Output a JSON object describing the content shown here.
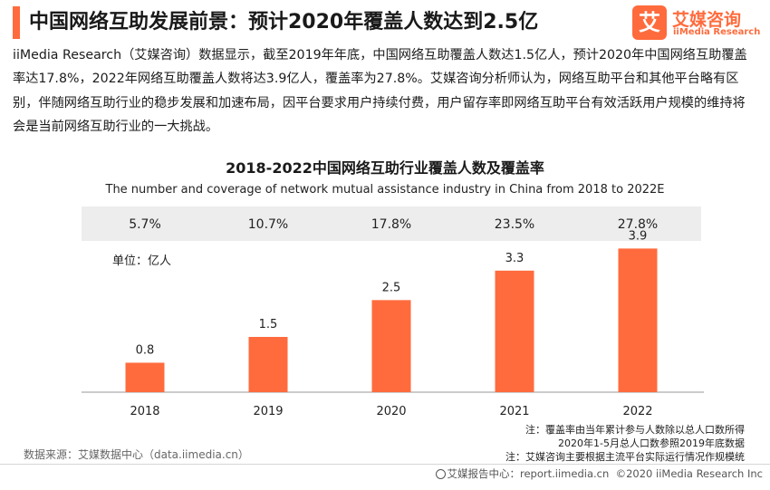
{
  "header": {
    "title": "中国网络互助发展前景：预计2020年覆盖人数达到2.5亿",
    "accent_color": "#ff6b3d"
  },
  "logo": {
    "mark": "艾",
    "name_cn": "艾媒咨询",
    "name_en": "iiMedia Research",
    "color": "#ff6b3d"
  },
  "paragraph": "iiMedia Research（艾媒咨询）数据显示，截至2019年年底，中国网络互助覆盖人数达1.5亿人，预计2020年中国网络互助覆盖率达17.8%，2022年网络互助覆盖人数将达3.9亿人，覆盖率为27.8%。艾媒咨询分析师认为，网络互助平台和其他平台略有区别，伴随网络互助行业的稳步发展和加速布局，因平台要求用户持续付费，用户留存率即网络互助平台有效活跃用户规模的维持将会是当前网络互助行业的一大挑战。",
  "chart_data": {
    "type": "bar",
    "title": "2018-2022中国网络互助行业覆盖人数及覆盖率",
    "subtitle": "The number and coverage of network mutual assistance industry in China from 2018 to 2022E",
    "unit_label": "单位：亿人",
    "categories": [
      "2018",
      "2019",
      "2020",
      "2021",
      "2022"
    ],
    "series": [
      {
        "values": [
          0.8,
          1.5,
          2.5,
          3.3,
          3.9
        ],
        "labels": [
          "0.8",
          "1.5",
          "2.5",
          "3.3",
          "3.9"
        ],
        "color": "#ff6b3d"
      }
    ],
    "coverage_rates": [
      "5.7%",
      "10.7%",
      "17.8%",
      "23.5%",
      "27.8%"
    ],
    "ylim": [
      0,
      4.5
    ],
    "grid": false,
    "colors": {
      "bar": "#ff6b3d",
      "rate_box": "#ededed",
      "axis": "#999999"
    }
  },
  "notes": [
    "注：覆盖率由当年累计参与人数除以总人口数所得",
    "2020年1-5月总人口数参照2019年底数据",
    "注：艾媒咨询主要根据主流平台实际运行情况作规模统"
  ],
  "footer": {
    "source": "数据来源：艾媒数据中心（data.iimedia.cn）",
    "brand_prefix": "艾媒报告中心：report.iimedia.cn",
    "copyright": "©2020  iiMedia Research  Inc"
  }
}
